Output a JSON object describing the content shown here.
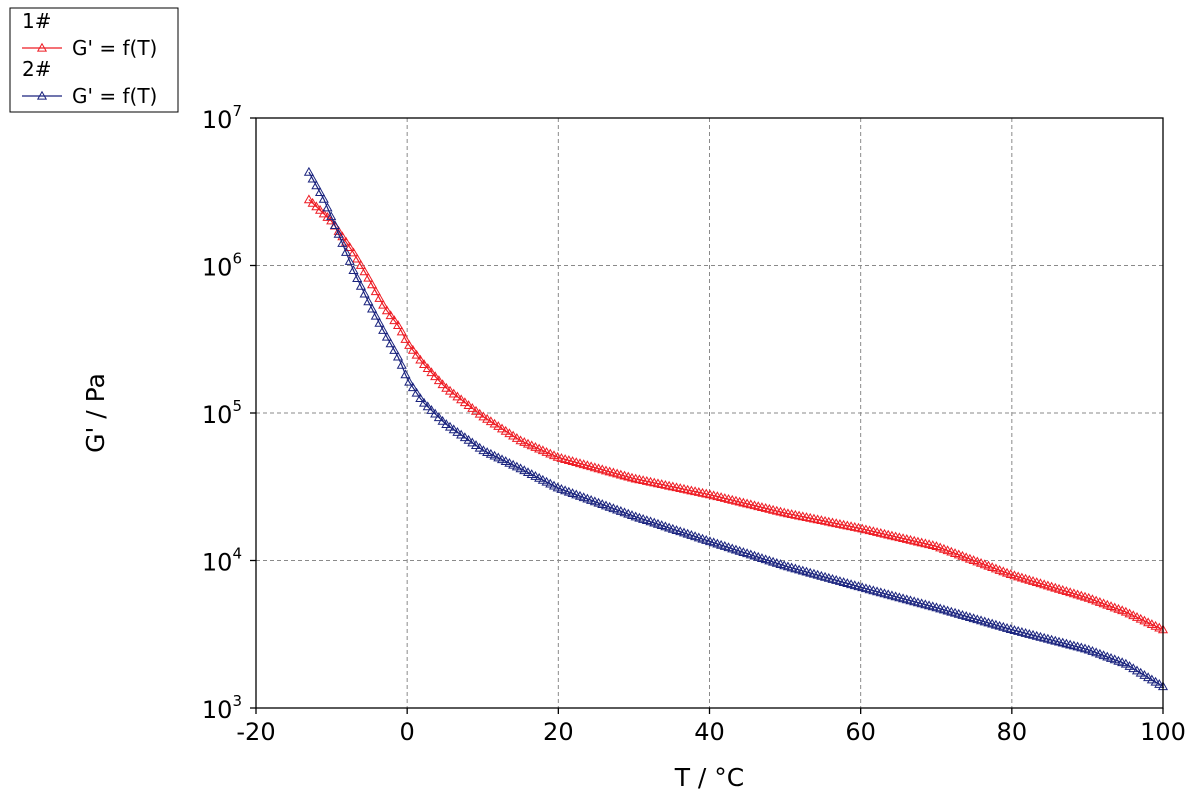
{
  "chart_data": {
    "type": "line",
    "xlabel": "T / °C",
    "ylabel": "G' / Pa",
    "xlim": [
      -20,
      100
    ],
    "ylim": [
      1000,
      10000000
    ],
    "y_scale": "log",
    "x_ticks": [
      -20,
      0,
      20,
      40,
      60,
      80,
      100
    ],
    "y_ticks": [
      {
        "value": 1000,
        "base": "10",
        "exp": "3"
      },
      {
        "value": 10000,
        "base": "10",
        "exp": "4"
      },
      {
        "value": 100000,
        "base": "10",
        "exp": "5"
      },
      {
        "value": 1000000,
        "base": "10",
        "exp": "6"
      },
      {
        "value": 10000000,
        "base": "10",
        "exp": "7"
      }
    ],
    "grid": true,
    "grid_style": "dashed",
    "legend_position": "top-left",
    "series": [
      {
        "group": "1#",
        "name": "G' = f(T)",
        "color": "#ee1c24",
        "marker": "open-triangle",
        "points": [
          [
            -13,
            2800000
          ],
          [
            -10,
            2000000
          ],
          [
            -7,
            1200000
          ],
          [
            -5,
            800000
          ],
          [
            -3,
            520000
          ],
          [
            -1,
            380000
          ],
          [
            0,
            300000
          ],
          [
            2,
            220000
          ],
          [
            5,
            150000
          ],
          [
            10,
            95000
          ],
          [
            15,
            65000
          ],
          [
            20,
            50000
          ],
          [
            30,
            36000
          ],
          [
            40,
            28000
          ],
          [
            50,
            21000
          ],
          [
            60,
            16500
          ],
          [
            70,
            12500
          ],
          [
            80,
            8000
          ],
          [
            90,
            5600
          ],
          [
            95,
            4500
          ],
          [
            100,
            3400
          ]
        ]
      },
      {
        "group": "2#",
        "name": "G' = f(T)",
        "color": "#1a237e",
        "marker": "open-triangle",
        "points": [
          [
            -13,
            4300000
          ],
          [
            -11,
            2800000
          ],
          [
            -9,
            1600000
          ],
          [
            -7,
            900000
          ],
          [
            -5,
            550000
          ],
          [
            -3,
            350000
          ],
          [
            -1,
            230000
          ],
          [
            0,
            170000
          ],
          [
            2,
            120000
          ],
          [
            5,
            85000
          ],
          [
            10,
            56000
          ],
          [
            15,
            42000
          ],
          [
            20,
            31000
          ],
          [
            30,
            20000
          ],
          [
            40,
            13500
          ],
          [
            50,
            9200
          ],
          [
            60,
            6600
          ],
          [
            70,
            4800
          ],
          [
            80,
            3400
          ],
          [
            90,
            2500
          ],
          [
            95,
            2000
          ],
          [
            100,
            1400
          ]
        ]
      }
    ]
  }
}
